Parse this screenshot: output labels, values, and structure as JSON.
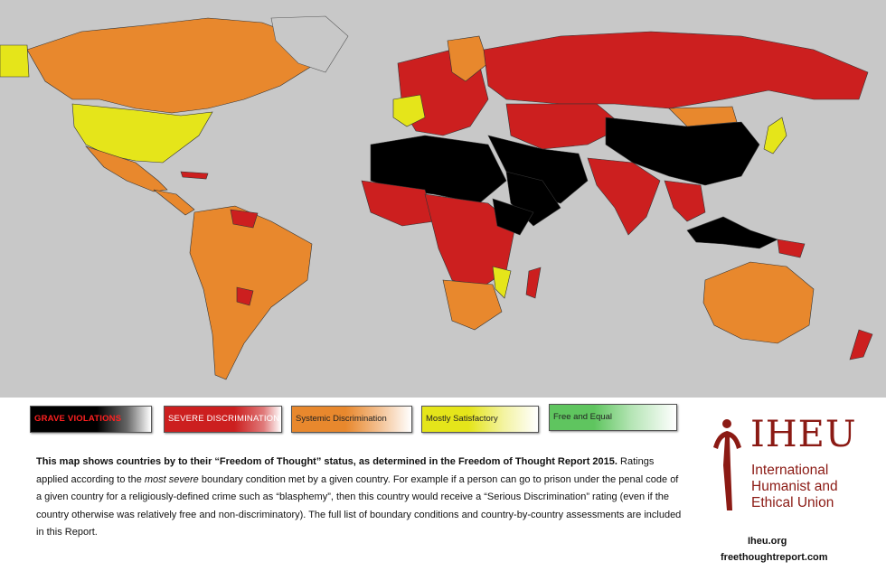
{
  "colors": {
    "ocean": "#c8c8c8",
    "grave": "#000000",
    "severe": "#cc1f1f",
    "systemic": "#e8882d",
    "mostly": "#e5e51a",
    "free": "#5fc55f",
    "brand": "#8b1a14"
  },
  "legend": [
    {
      "id": "grave",
      "label": "GRAVE VIOLATIONS",
      "color": "#000000"
    },
    {
      "id": "severe",
      "label": "SEVERE DISCRIMINATION",
      "color": "#cc1f1f"
    },
    {
      "id": "systemic",
      "label": "Systemic Discrimination",
      "color": "#e8882d"
    },
    {
      "id": "mostly",
      "label": "Mostly Satisfactory",
      "color": "#e5e51a"
    },
    {
      "id": "free",
      "label": "Free and Equal",
      "color": "#5fc55f"
    }
  ],
  "caption": {
    "lead": "This map shows countries by to their “Freedom of Thought” status, as determined in the Freedom of Thought Report 2015.",
    "part1": "Ratings applied according to the",
    "emphasis": "most severe",
    "part2": "boundary condition met by a given country. For example if a person can go to prison under the penal code of a given country for a religiously-defined crime such as “blasphemy”, then this country would receive a “Serious Discrimination” rating (even if the country otherwise was relatively free and non-discriminatory). The full list of boundary conditions and country-by-country assessments are included in this Report."
  },
  "logo": {
    "letters": "IHEU",
    "name_line1": "International",
    "name_line2": "Humanist and",
    "name_line3": "Ethical Union"
  },
  "links": {
    "iheu": "Iheu.org",
    "freethought": "freethoughtreport.com"
  }
}
